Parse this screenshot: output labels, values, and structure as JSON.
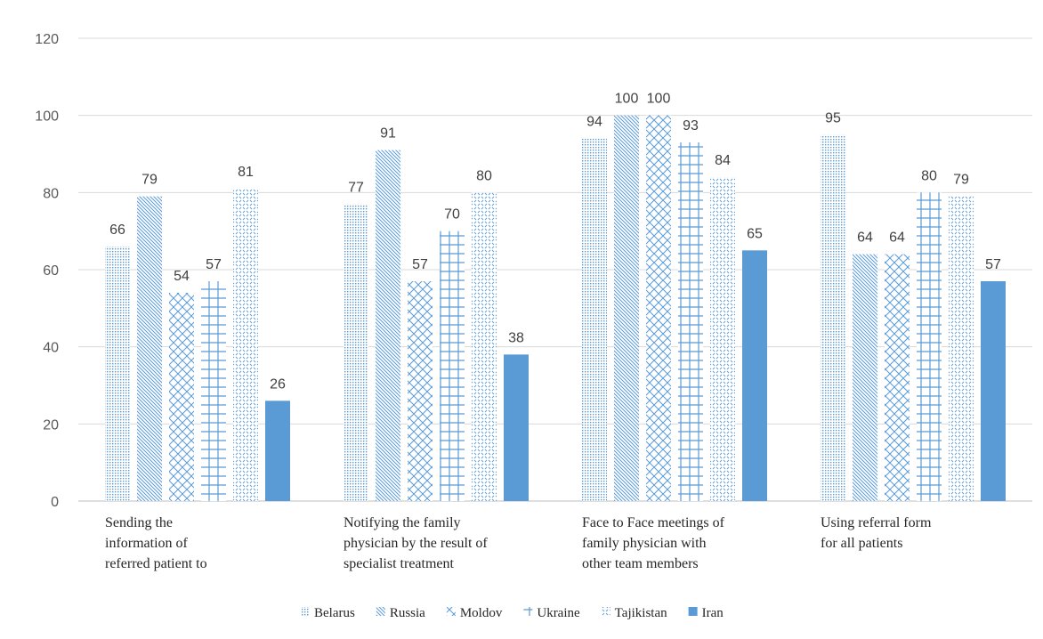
{
  "chart_data": {
    "type": "bar",
    "categories": [
      "Sending the information of referred patient to",
      "Notifying the family physician by the result of specialist treatment",
      "Face to Face meetings of family physician with other team members",
      "Using referral form for all patients"
    ],
    "category_lines": [
      [
        "Sending the",
        "information of",
        "referred patient to"
      ],
      [
        "Notifying the family",
        "physician by the result of",
        "specialist treatment"
      ],
      [
        "Face to Face meetings of",
        "family physician with",
        "other team members"
      ],
      [
        "Using referral form",
        "for all patients"
      ]
    ],
    "series": [
      {
        "name": "Belarus",
        "values": [
          66,
          77,
          94,
          95
        ]
      },
      {
        "name": "Russia",
        "values": [
          79,
          91,
          100,
          64
        ]
      },
      {
        "name": "Moldov",
        "values": [
          54,
          57,
          100,
          64
        ]
      },
      {
        "name": "Ukraine",
        "values": [
          57,
          70,
          93,
          80
        ]
      },
      {
        "name": "Tajikistan",
        "values": [
          81,
          80,
          84,
          79
        ]
      },
      {
        "name": "Iran",
        "values": [
          26,
          38,
          65,
          57
        ]
      }
    ],
    "ylim": [
      0,
      120
    ],
    "yticks": [
      0,
      20,
      40,
      60,
      80,
      100,
      120
    ],
    "grid": true,
    "legend": "bottom",
    "colors": {
      "pattern": "#5b9bd5",
      "solid": "#5b9bd5",
      "grid": "#d9d9d9",
      "axis": "#bfbfbf"
    }
  }
}
